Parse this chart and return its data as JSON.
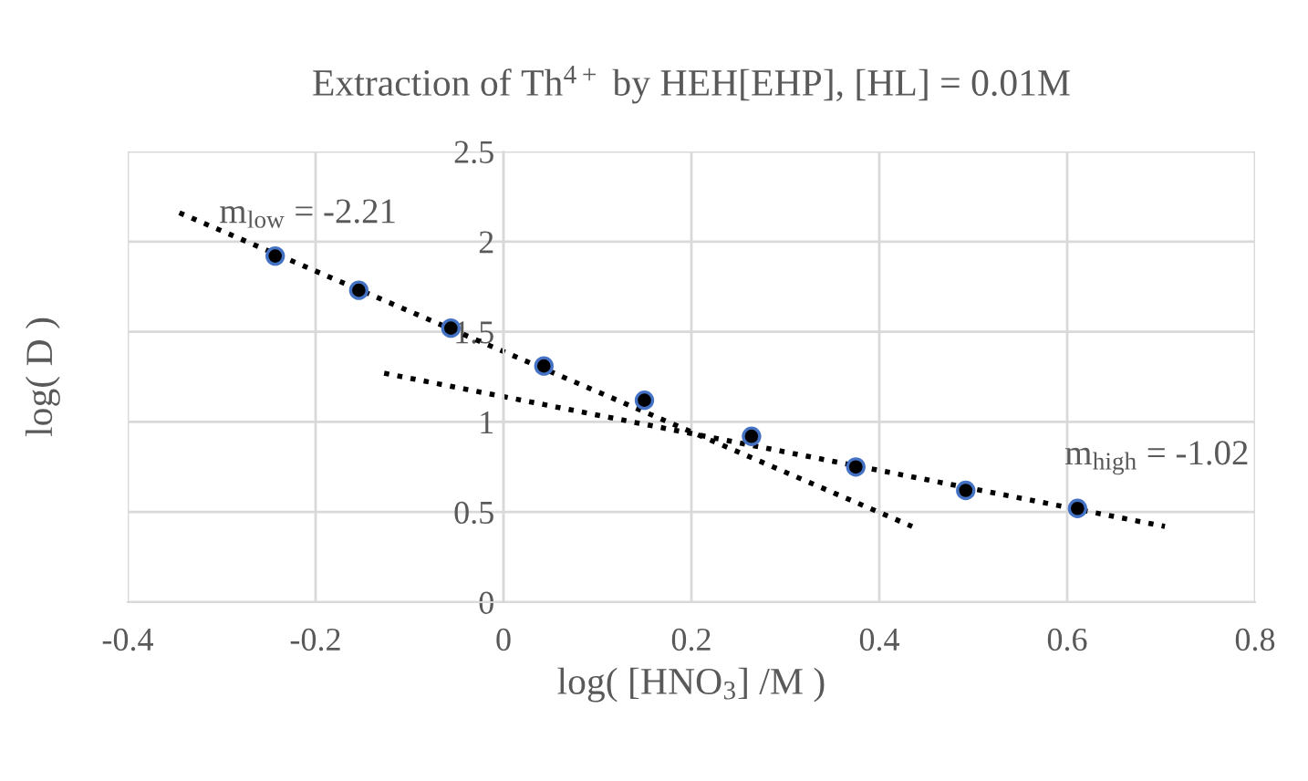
{
  "chart_data": {
    "type": "scatter",
    "title": "Extraction of Th$^{4+}$ by HEH[EHP], [HL] = 0.01M",
    "xlabel": "log( [HNO$_{3}$] /M )",
    "ylabel": "log( D )",
    "xlim": [
      -0.4,
      0.8
    ],
    "xticks": [
      -0.4,
      -0.2,
      0,
      0.2,
      0.4,
      0.6,
      0.8
    ],
    "ylim": [
      0,
      2.5
    ],
    "yticks": [
      0,
      0.5,
      1,
      1.5,
      2,
      2.5
    ],
    "grid": true,
    "series": [
      {
        "marker": "circle",
        "color": "#000000",
        "x": [
          -0.243,
          -0.154,
          -0.056,
          0.043,
          0.15,
          0.264,
          0.375,
          0.492,
          0.611
        ],
        "values": [
          1.92,
          1.73,
          1.52,
          1.31,
          1.12,
          0.92,
          0.75,
          0.62,
          0.52
        ]
      },
      {
        "type": "line",
        "color": "#000000",
        "line_style": "dotted",
        "x": [
          -0.345,
          0.435
        ],
        "values": [
          2.16,
          0.42
        ]
      },
      {
        "type": "line",
        "color": "#000000",
        "line_style": "dotted",
        "x": [
          -0.127,
          0.704
        ],
        "values": [
          1.27,
          0.42
        ]
      }
    ],
    "annotations": [
      "m$_{low}$ = -2.21",
      "m$_{high}$ = -1.02"
    ]
  }
}
